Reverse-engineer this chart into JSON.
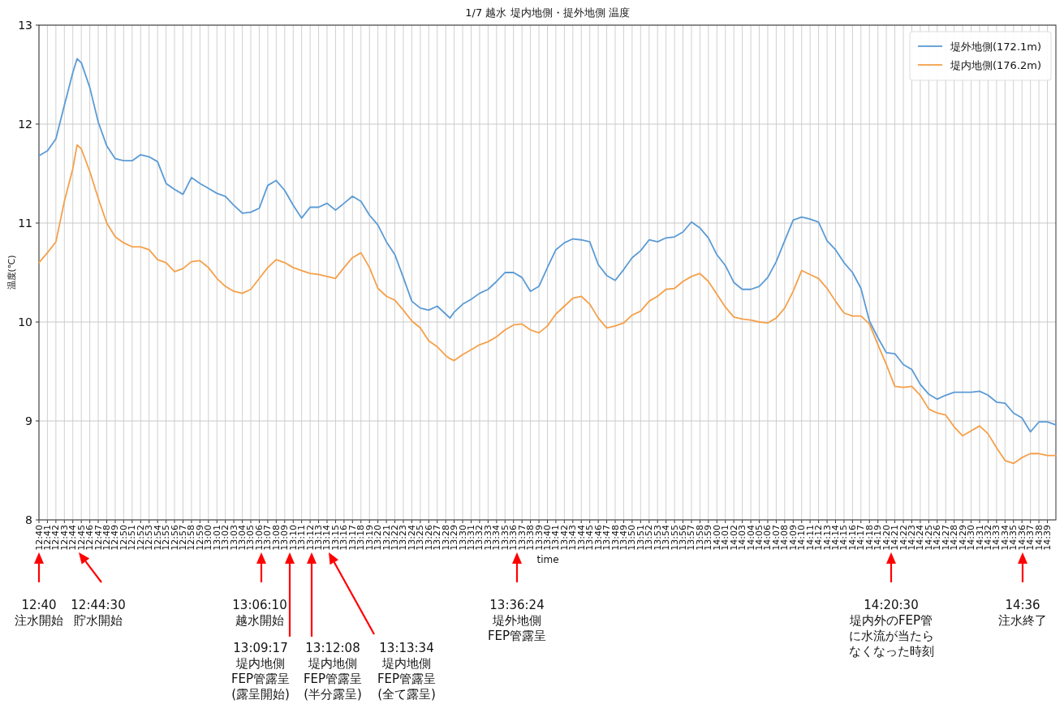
{
  "chart_data": {
    "type": "line",
    "title": "1/7 越水 堤内地側・提外地側 温度",
    "xlabel": "time",
    "ylabel": "温度(℃)",
    "grid": true,
    "legend": "top right",
    "xlim": [
      12.6667,
      14.6667
    ],
    "ylim": [
      8,
      13
    ],
    "yticks": [
      8,
      9,
      10,
      11,
      12,
      13
    ],
    "xticks": [
      {
        "value": 12.6667,
        "label": "12:40"
      },
      {
        "value": 12.6833,
        "label": "12:41"
      },
      {
        "value": 12.7,
        "label": "12:42"
      },
      {
        "value": 12.7167,
        "label": "12:43"
      },
      {
        "value": 12.7333,
        "label": "12:44"
      },
      {
        "value": 12.75,
        "label": "12:45"
      },
      {
        "value": 12.7667,
        "label": "12:46"
      },
      {
        "value": 12.7833,
        "label": "12:47"
      },
      {
        "value": 12.8,
        "label": "12:48"
      },
      {
        "value": 12.8167,
        "label": "12:49"
      },
      {
        "value": 12.8333,
        "label": "12:50"
      },
      {
        "value": 12.85,
        "label": "12:51"
      },
      {
        "value": 12.8667,
        "label": "12:52"
      },
      {
        "value": 12.8833,
        "label": "12:53"
      },
      {
        "value": 12.9,
        "label": "12:54"
      },
      {
        "value": 12.9167,
        "label": "12:55"
      },
      {
        "value": 12.9333,
        "label": "12:56"
      },
      {
        "value": 12.95,
        "label": "12:57"
      },
      {
        "value": 12.9667,
        "label": "12:58"
      },
      {
        "value": 12.9833,
        "label": "12:59"
      },
      {
        "value": 13,
        "label": "13:00"
      },
      {
        "value": 13.0167,
        "label": "13:01"
      },
      {
        "value": 13.0333,
        "label": "13:02"
      },
      {
        "value": 13.05,
        "label": "13:03"
      },
      {
        "value": 13.0667,
        "label": "13:04"
      },
      {
        "value": 13.0833,
        "label": "13:05"
      },
      {
        "value": 13.1,
        "label": "13:06"
      },
      {
        "value": 13.1167,
        "label": "13:07"
      },
      {
        "value": 13.1333,
        "label": "13:08"
      },
      {
        "value": 13.15,
        "label": "13:09"
      },
      {
        "value": 13.1667,
        "label": "13:10"
      },
      {
        "value": 13.1833,
        "label": "13:11"
      },
      {
        "value": 13.2,
        "label": "13:12"
      },
      {
        "value": 13.2167,
        "label": "13:13"
      },
      {
        "value": 13.2333,
        "label": "13:14"
      },
      {
        "value": 13.25,
        "label": "13:15"
      },
      {
        "value": 13.2667,
        "label": "13:16"
      },
      {
        "value": 13.2833,
        "label": "13:17"
      },
      {
        "value": 13.3,
        "label": "13:18"
      },
      {
        "value": 13.3167,
        "label": "13:19"
      },
      {
        "value": 13.3333,
        "label": "13:20"
      },
      {
        "value": 13.35,
        "label": "13:21"
      },
      {
        "value": 13.3667,
        "label": "13:22"
      },
      {
        "value": 13.3833,
        "label": "13:23"
      },
      {
        "value": 13.4,
        "label": "13:24"
      },
      {
        "value": 13.4167,
        "label": "13:25"
      },
      {
        "value": 13.4333,
        "label": "13:26"
      },
      {
        "value": 13.45,
        "label": "13:27"
      },
      {
        "value": 13.4667,
        "label": "13:28"
      },
      {
        "value": 13.4833,
        "label": "13:29"
      },
      {
        "value": 13.5,
        "label": "13:30"
      },
      {
        "value": 13.5167,
        "label": "13:31"
      },
      {
        "value": 13.5333,
        "label": "13:32"
      },
      {
        "value": 13.55,
        "label": "13:33"
      },
      {
        "value": 13.5667,
        "label": "13:34"
      },
      {
        "value": 13.5833,
        "label": "13:35"
      },
      {
        "value": 13.6,
        "label": "13:36"
      },
      {
        "value": 13.6167,
        "label": "13:37"
      },
      {
        "value": 13.6333,
        "label": "13:38"
      },
      {
        "value": 13.65,
        "label": "13:39"
      },
      {
        "value": 13.6667,
        "label": "13:40"
      },
      {
        "value": 13.6833,
        "label": "13:41"
      },
      {
        "value": 13.7,
        "label": "13:42"
      },
      {
        "value": 13.7167,
        "label": "13:43"
      },
      {
        "value": 13.7333,
        "label": "13:44"
      },
      {
        "value": 13.75,
        "label": "13:45"
      },
      {
        "value": 13.7667,
        "label": "13:46"
      },
      {
        "value": 13.7833,
        "label": "13:47"
      },
      {
        "value": 13.8,
        "label": "13:48"
      },
      {
        "value": 13.8167,
        "label": "13:49"
      },
      {
        "value": 13.8333,
        "label": "13:50"
      },
      {
        "value": 13.85,
        "label": "13:51"
      },
      {
        "value": 13.8667,
        "label": "13:52"
      },
      {
        "value": 13.8833,
        "label": "13:53"
      },
      {
        "value": 13.9,
        "label": "13:54"
      },
      {
        "value": 13.9167,
        "label": "13:55"
      },
      {
        "value": 13.9333,
        "label": "13:56"
      },
      {
        "value": 13.95,
        "label": "13:57"
      },
      {
        "value": 13.9667,
        "label": "13:58"
      },
      {
        "value": 13.9833,
        "label": "13:59"
      },
      {
        "value": 14,
        "label": "14:00"
      },
      {
        "value": 14.0167,
        "label": "14:01"
      },
      {
        "value": 14.0333,
        "label": "14:02"
      },
      {
        "value": 14.05,
        "label": "14:03"
      },
      {
        "value": 14.0667,
        "label": "14:04"
      },
      {
        "value": 14.0833,
        "label": "14:05"
      },
      {
        "value": 14.1,
        "label": "14:06"
      },
      {
        "value": 14.1167,
        "label": "14:07"
      },
      {
        "value": 14.1333,
        "label": "14:08"
      },
      {
        "value": 14.15,
        "label": "14:09"
      },
      {
        "value": 14.1667,
        "label": "14:10"
      },
      {
        "value": 14.1833,
        "label": "14:11"
      },
      {
        "value": 14.2,
        "label": "14:12"
      },
      {
        "value": 14.2167,
        "label": "14:13"
      },
      {
        "value": 14.2333,
        "label": "14:14"
      },
      {
        "value": 14.25,
        "label": "14:15"
      },
      {
        "value": 14.2667,
        "label": "14:16"
      },
      {
        "value": 14.2833,
        "label": "14:17"
      },
      {
        "value": 14.3,
        "label": "14:18"
      },
      {
        "value": 14.3167,
        "label": "14:19"
      },
      {
        "value": 14.3333,
        "label": "14:20"
      },
      {
        "value": 14.35,
        "label": "14:21"
      },
      {
        "value": 14.3667,
        "label": "14:22"
      },
      {
        "value": 14.3833,
        "label": "14:23"
      },
      {
        "value": 14.4,
        "label": "14:24"
      },
      {
        "value": 14.4167,
        "label": "14:25"
      },
      {
        "value": 14.4333,
        "label": "14:26"
      },
      {
        "value": 14.45,
        "label": "14:27"
      },
      {
        "value": 14.4667,
        "label": "14:28"
      },
      {
        "value": 14.4833,
        "label": "14:29"
      },
      {
        "value": 14.5,
        "label": "14:30"
      },
      {
        "value": 14.5167,
        "label": "14:31"
      },
      {
        "value": 14.5333,
        "label": "14:32"
      },
      {
        "value": 14.55,
        "label": "14:33"
      },
      {
        "value": 14.5667,
        "label": "14:34"
      },
      {
        "value": 14.5833,
        "label": "14:35"
      },
      {
        "value": 14.6,
        "label": "14:36"
      },
      {
        "value": 14.6167,
        "label": "14:37"
      },
      {
        "value": 14.6333,
        "label": "14:38"
      },
      {
        "value": 14.65,
        "label": "14:39"
      }
    ],
    "x": [
      12.6667,
      12.6833,
      12.7,
      12.7167,
      12.7333,
      12.7417,
      12.75,
      12.7667,
      12.7833,
      12.8,
      12.8167,
      12.8333,
      12.85,
      12.8667,
      12.8833,
      12.9,
      12.9167,
      12.9333,
      12.95,
      12.9667,
      12.9833,
      13,
      13.0167,
      13.0333,
      13.05,
      13.0667,
      13.0833,
      13.1,
      13.1167,
      13.1333,
      13.15,
      13.1667,
      13.1833,
      13.2,
      13.2167,
      13.2333,
      13.25,
      13.2667,
      13.2833,
      13.3,
      13.3167,
      13.3333,
      13.35,
      13.3667,
      13.3833,
      13.4,
      13.4167,
      13.4333,
      13.45,
      13.4667,
      13.475,
      13.4833,
      13.5,
      13.5167,
      13.5333,
      13.55,
      13.5667,
      13.5833,
      13.6,
      13.6167,
      13.6333,
      13.65,
      13.6667,
      13.6833,
      13.7,
      13.7167,
      13.7333,
      13.75,
      13.7667,
      13.7833,
      13.8,
      13.8167,
      13.8333,
      13.85,
      13.8667,
      13.8833,
      13.9,
      13.9167,
      13.9333,
      13.95,
      13.9667,
      13.9833,
      14,
      14.0167,
      14.0333,
      14.05,
      14.0667,
      14.0833,
      14.1,
      14.1167,
      14.1333,
      14.15,
      14.1667,
      14.1833,
      14.2,
      14.2167,
      14.2333,
      14.25,
      14.2667,
      14.2833,
      14.3,
      14.3167,
      14.3333,
      14.35,
      14.3667,
      14.3833,
      14.4,
      14.4167,
      14.4333,
      14.45,
      14.4667,
      14.4833,
      14.5,
      14.5167,
      14.5333,
      14.55,
      14.5667,
      14.5833,
      14.6,
      14.6167,
      14.6333,
      14.65,
      14.6667
    ],
    "series": [
      {
        "name": "堤外地側(172.1m)",
        "color": "#5b9bd5",
        "values": [
          11.68,
          11.73,
          11.85,
          12.19,
          12.52,
          12.66,
          12.62,
          12.37,
          12.02,
          11.78,
          11.65,
          11.63,
          11.63,
          11.69,
          11.67,
          11.62,
          11.4,
          11.34,
          11.29,
          11.46,
          11.4,
          11.35,
          11.3,
          11.27,
          11.18,
          11.1,
          11.11,
          11.15,
          11.38,
          11.43,
          11.33,
          11.18,
          11.05,
          11.16,
          11.16,
          11.2,
          11.13,
          11.2,
          11.27,
          11.22,
          11.08,
          10.98,
          10.81,
          10.68,
          10.45,
          10.21,
          10.14,
          10.12,
          10.16,
          10.08,
          10.04,
          10.1,
          10.18,
          10.23,
          10.29,
          10.33,
          10.41,
          10.5,
          10.5,
          10.45,
          10.31,
          10.36,
          10.55,
          10.73,
          10.8,
          10.84,
          10.83,
          10.81,
          10.58,
          10.47,
          10.42,
          10.53,
          10.65,
          10.72,
          10.83,
          10.81,
          10.85,
          10.86,
          10.91,
          11.01,
          10.95,
          10.85,
          10.68,
          10.57,
          10.4,
          10.33,
          10.33,
          10.36,
          10.45,
          10.61,
          10.82,
          11.03,
          11.06,
          11.04,
          11.01,
          10.82,
          10.73,
          10.6,
          10.5,
          10.34,
          10.01,
          9.84,
          9.69,
          9.68,
          9.57,
          9.52,
          9.37,
          9.27,
          9.22,
          9.26,
          9.29,
          9.29,
          9.29,
          9.3,
          9.26,
          9.19,
          9.18,
          9.08,
          9.03,
          8.89,
          8.99,
          8.99,
          8.96
        ]
      },
      {
        "name": "堤内地側(176.2m)",
        "color": "#f5a04a",
        "values": [
          10.6,
          10.7,
          10.81,
          11.22,
          11.55,
          11.79,
          11.75,
          11.52,
          11.25,
          11.0,
          10.86,
          10.8,
          10.76,
          10.76,
          10.73,
          10.63,
          10.6,
          10.51,
          10.54,
          10.61,
          10.62,
          10.55,
          10.44,
          10.36,
          10.31,
          10.29,
          10.33,
          10.44,
          10.55,
          10.63,
          10.6,
          10.55,
          10.52,
          10.49,
          10.48,
          10.46,
          10.44,
          10.55,
          10.65,
          10.7,
          10.55,
          10.34,
          10.26,
          10.22,
          10.12,
          10.01,
          9.94,
          9.81,
          9.75,
          9.66,
          9.63,
          9.61,
          9.67,
          9.72,
          9.77,
          9.8,
          9.85,
          9.92,
          9.97,
          9.98,
          9.92,
          9.89,
          9.96,
          10.08,
          10.16,
          10.24,
          10.26,
          10.18,
          10.04,
          9.94,
          9.96,
          9.99,
          10.07,
          10.11,
          10.21,
          10.26,
          10.33,
          10.34,
          10.41,
          10.46,
          10.49,
          10.41,
          10.28,
          10.15,
          10.05,
          10.03,
          10.02,
          10.0,
          9.99,
          10.04,
          10.14,
          10.31,
          10.52,
          10.48,
          10.44,
          10.34,
          10.21,
          10.09,
          10.06,
          10.06,
          9.98,
          9.77,
          9.57,
          9.35,
          9.34,
          9.35,
          9.26,
          9.12,
          9.08,
          9.06,
          8.94,
          8.85,
          8.9,
          8.95,
          8.87,
          8.73,
          8.6,
          8.57,
          8.63,
          8.67,
          8.67,
          8.65,
          8.65
        ]
      }
    ],
    "annotations": [
      "12:40\n注水開始",
      "12:44:30\n貯水開始",
      "13:06:10\n越水開始",
      "13:09:17\n堤内地側\nFEP管露呈\n(露呈開始)",
      "13:12:08\n堤内地側\nFEP管露呈\n(半分露呈)",
      "13:13:34\n堤内地側\nFEP管露呈\n(全て露呈)",
      "13:36:24\n堤外地側\nFEP管露呈",
      "14:20:30\n堤内外のFEP管に水流が当たらなくなった時刻",
      "14:36\n注水終了"
    ]
  }
}
